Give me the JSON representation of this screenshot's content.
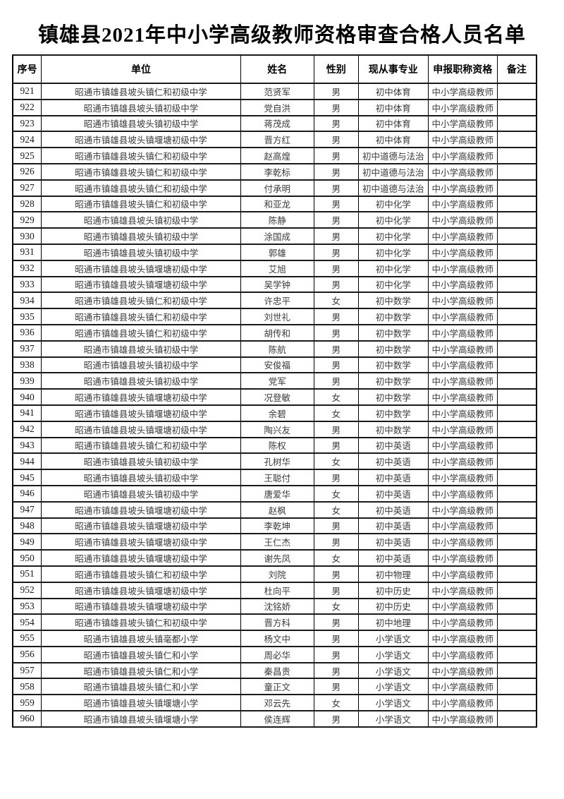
{
  "page": {
    "title": "镇雄县2021年中小学高级教师资格审查合格人员名单"
  },
  "table": {
    "columns": [
      "序号",
      "单位",
      "姓名",
      "性别",
      "现从事专业",
      "申报职称资格",
      "备注"
    ],
    "rows": [
      [
        "921",
        "昭通市镇雄县坡头镇仁和初级中学",
        "范贤军",
        "男",
        "初中体育",
        "中小学高级教师",
        ""
      ],
      [
        "922",
        "昭通市镇雄县坡头镇初级中学",
        "党自洪",
        "男",
        "初中体育",
        "中小学高级教师",
        ""
      ],
      [
        "923",
        "昭通市镇雄县坡头镇初级中学",
        "蒋茂成",
        "男",
        "初中体育",
        "中小学高级教师",
        ""
      ],
      [
        "924",
        "昭通市镇雄县坡头镇堰塘初级中学",
        "晋方红",
        "男",
        "初中体育",
        "中小学高级教师",
        ""
      ],
      [
        "925",
        "昭通市镇雄县坡头镇仁和初级中学",
        "赵高煌",
        "男",
        "初中道德与法治",
        "中小学高级教师",
        ""
      ],
      [
        "926",
        "昭通市镇雄县坡头镇仁和初级中学",
        "李乾标",
        "男",
        "初中道德与法治",
        "中小学高级教师",
        ""
      ],
      [
        "927",
        "昭通市镇雄县坡头镇仁和初级中学",
        "付承明",
        "男",
        "初中道德与法治",
        "中小学高级教师",
        ""
      ],
      [
        "928",
        "昭通市镇雄县坡头镇仁和初级中学",
        "和亚龙",
        "男",
        "初中化学",
        "中小学高级教师",
        ""
      ],
      [
        "929",
        "昭通市镇雄县坡头镇初级中学",
        "陈静",
        "男",
        "初中化学",
        "中小学高级教师",
        ""
      ],
      [
        "930",
        "昭通市镇雄县坡头镇初级中学",
        "涂国成",
        "男",
        "初中化学",
        "中小学高级教师",
        ""
      ],
      [
        "931",
        "昭通市镇雄县坡头镇初级中学",
        "郭雄",
        "男",
        "初中化学",
        "中小学高级教师",
        ""
      ],
      [
        "932",
        "昭通市镇雄县坡头镇堰塘初级中学",
        "艾旭",
        "男",
        "初中化学",
        "中小学高级教师",
        ""
      ],
      [
        "933",
        "昭通市镇雄县坡头镇堰塘初级中学",
        "吴学钟",
        "男",
        "初中化学",
        "中小学高级教师",
        ""
      ],
      [
        "934",
        "昭通市镇雄县坡头镇仁和初级中学",
        "许忠平",
        "女",
        "初中数学",
        "中小学高级教师",
        ""
      ],
      [
        "935",
        "昭通市镇雄县坡头镇仁和初级中学",
        "刘世礼",
        "男",
        "初中数学",
        "中小学高级教师",
        ""
      ],
      [
        "936",
        "昭通市镇雄县坡头镇仁和初级中学",
        "胡传和",
        "男",
        "初中数学",
        "中小学高级教师",
        ""
      ],
      [
        "937",
        "昭通市镇雄县坡头镇初级中学",
        "陈航",
        "男",
        "初中数学",
        "中小学高级教师",
        ""
      ],
      [
        "938",
        "昭通市镇雄县坡头镇初级中学",
        "安俊福",
        "男",
        "初中数学",
        "中小学高级教师",
        ""
      ],
      [
        "939",
        "昭通市镇雄县坡头镇初级中学",
        "党军",
        "男",
        "初中数学",
        "中小学高级教师",
        ""
      ],
      [
        "940",
        "昭通市镇雄县坡头镇堰塘初级中学",
        "况登敏",
        "女",
        "初中数学",
        "中小学高级教师",
        ""
      ],
      [
        "941",
        "昭通市镇雄县坡头镇堰塘初级中学",
        "余碧",
        "女",
        "初中数学",
        "中小学高级教师",
        ""
      ],
      [
        "942",
        "昭通市镇雄县坡头镇堰塘初级中学",
        "陶兴友",
        "男",
        "初中数学",
        "中小学高级教师",
        ""
      ],
      [
        "943",
        "昭通市镇雄县坡头镇仁和初级中学",
        "陈权",
        "男",
        "初中英语",
        "中小学高级教师",
        ""
      ],
      [
        "944",
        "昭通市镇雄县坡头镇初级中学",
        "孔树华",
        "女",
        "初中英语",
        "中小学高级教师",
        ""
      ],
      [
        "945",
        "昭通市镇雄县坡头镇初级中学",
        "王聪付",
        "男",
        "初中英语",
        "中小学高级教师",
        ""
      ],
      [
        "946",
        "昭通市镇雄县坡头镇初级中学",
        "唐爱华",
        "女",
        "初中英语",
        "中小学高级教师",
        ""
      ],
      [
        "947",
        "昭通市镇雄县坡头镇堰塘初级中学",
        "赵枫",
        "女",
        "初中英语",
        "中小学高级教师",
        ""
      ],
      [
        "948",
        "昭通市镇雄县坡头镇堰塘初级中学",
        "李乾坤",
        "男",
        "初中英语",
        "中小学高级教师",
        ""
      ],
      [
        "949",
        "昭通市镇雄县坡头镇堰塘初级中学",
        "王仁杰",
        "男",
        "初中英语",
        "中小学高级教师",
        ""
      ],
      [
        "950",
        "昭通市镇雄县坡头镇堰塘初级中学",
        "谢先凤",
        "女",
        "初中英语",
        "中小学高级教师",
        ""
      ],
      [
        "951",
        "昭通市镇雄县坡头镇仁和初级中学",
        "刘院",
        "男",
        "初中物理",
        "中小学高级教师",
        ""
      ],
      [
        "952",
        "昭通市镇雄县坡头镇堰塘初级中学",
        "杜向平",
        "男",
        "初中历史",
        "中小学高级教师",
        ""
      ],
      [
        "953",
        "昭通市镇雄县坡头镇堰塘初级中学",
        "沈铭娇",
        "女",
        "初中历史",
        "中小学高级教师",
        ""
      ],
      [
        "954",
        "昭通市镇雄县坡头镇仁和初级中学",
        "晋方科",
        "男",
        "初中地理",
        "中小学高级教师",
        ""
      ],
      [
        "955",
        "昭通市镇雄县坡头镇毫都小学",
        "杨文中",
        "男",
        "小学语文",
        "中小学高级教师",
        ""
      ],
      [
        "956",
        "昭通市镇雄县坡头镇仁和小学",
        "周必华",
        "男",
        "小学语文",
        "中小学高级教师",
        ""
      ],
      [
        "957",
        "昭通市镇雄县坡头镇仁和小学",
        "秦昌贵",
        "男",
        "小学语文",
        "中小学高级教师",
        ""
      ],
      [
        "958",
        "昭通市镇雄县坡头镇仁和小学",
        "童正文",
        "男",
        "小学语文",
        "中小学高级教师",
        ""
      ],
      [
        "959",
        "昭通市镇雄县坡头镇堰塘小学",
        "邓云先",
        "女",
        "小学语文",
        "中小学高级教师",
        ""
      ],
      [
        "960",
        "昭通市镇雄县坡头镇堰塘小学",
        "侯连辉",
        "男",
        "小学语文",
        "中小学高级教师",
        ""
      ]
    ]
  }
}
